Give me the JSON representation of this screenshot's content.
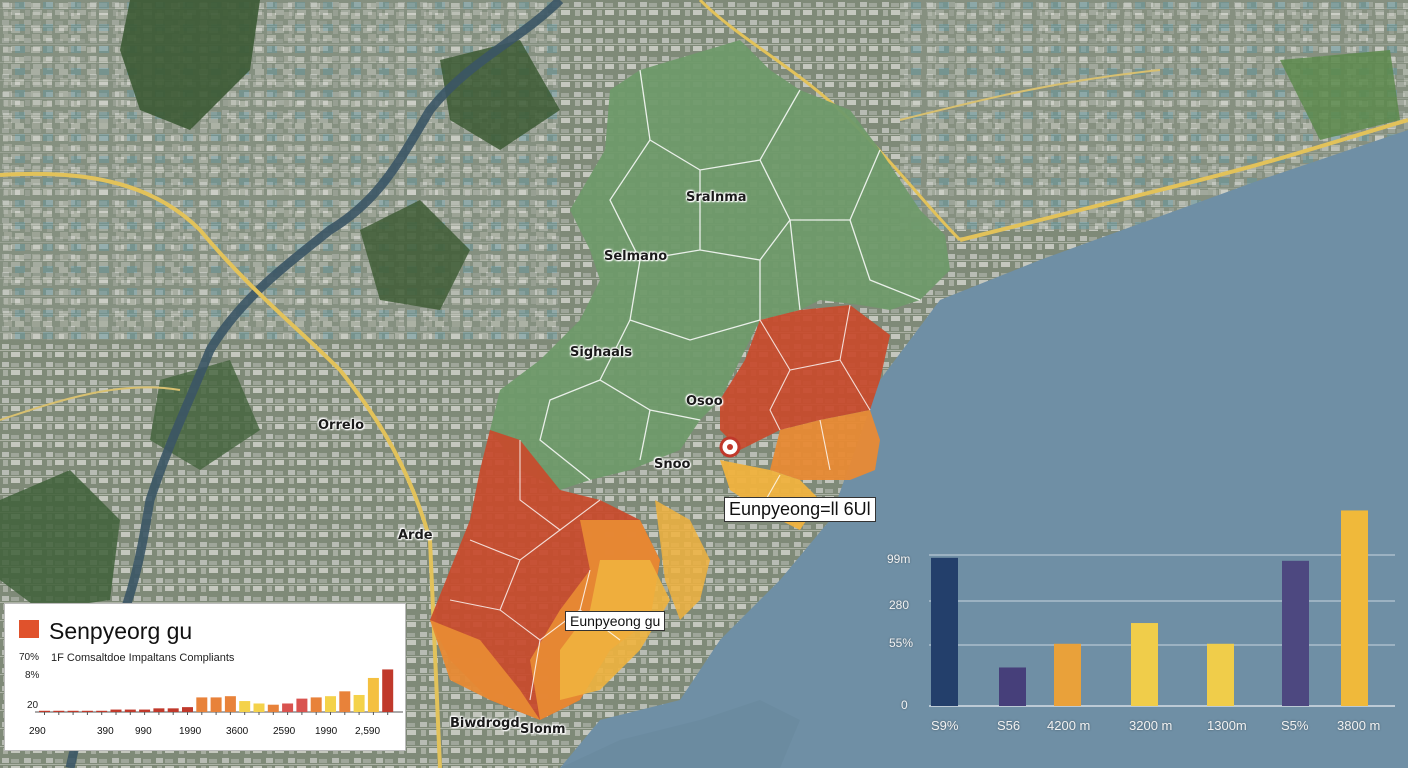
{
  "map_labels": [
    {
      "text": "Sralnma"
    },
    {
      "text": "Selmano"
    },
    {
      "text": "Sighaals"
    },
    {
      "text": "Osoo"
    },
    {
      "text": "Snoo"
    },
    {
      "text": "Orrelo"
    },
    {
      "text": "Arde"
    },
    {
      "text": "Biwdrogd"
    },
    {
      "text": "Slonm"
    }
  ],
  "map_tags": {
    "main": "Eunpyeong=ll 6Ul",
    "secondary": "Eunpyeong gu"
  },
  "colors": {
    "green_zone": "#6f9a6a",
    "red_zone": "#c84a2c",
    "orange_zone": "#e88a34",
    "yellow_zone": "#f0b23e",
    "water": "#6f8fa5"
  },
  "left_panel": {
    "title": "Senpyeorg gu",
    "subtitle": "1F Comsaltdoe Impaltans Compliants",
    "y_labels": [
      "70%",
      "8%",
      "20"
    ],
    "x_labels": [
      "290",
      "390",
      "990",
      "1990",
      "3600",
      "2590",
      "1990",
      "2,590"
    ]
  },
  "right_panel": {
    "y_labels": [
      "99m",
      "280",
      "55%",
      "0"
    ],
    "x_labels": [
      "S9%",
      "S56",
      "4200 m",
      "3200 m",
      "1300m",
      "S5%",
      "3800 m"
    ]
  },
  "chart_data": [
    {
      "type": "bar",
      "title": "Senpyeorg gu",
      "subtitle": "1F Comsaltdoe Impaltans Compliants",
      "values": [
        1,
        1,
        1,
        1,
        1,
        2,
        2,
        2,
        3,
        3,
        4,
        12,
        12,
        13,
        9,
        7,
        6,
        7,
        11,
        12,
        13,
        17,
        14,
        28,
        35
      ],
      "colors": [
        "#c0392b",
        "#c0392b",
        "#c0392b",
        "#c0392b",
        "#c0392b",
        "#c0392b",
        "#c0392b",
        "#c0392b",
        "#c0392b",
        "#c0392b",
        "#c0392b",
        "#e8823a",
        "#e8823a",
        "#e8823a",
        "#f4d24a",
        "#f4d24a",
        "#e8823a",
        "#d9534f",
        "#d9534f",
        "#e8823a",
        "#f4d24a",
        "#e8823a",
        "#f4d24a",
        "#f4c040",
        "#c0392b"
      ],
      "x_tick_labels": [
        "290",
        "390",
        "990",
        "1990",
        "3600",
        "2590",
        "1990",
        "2,590"
      ],
      "y_tick_labels": [
        "70%",
        "8%",
        "20"
      ],
      "legend": [
        {
          "name": "Senpyeorg gu",
          "color": "#e0522c"
        }
      ],
      "ylim": [
        0,
        37
      ]
    },
    {
      "type": "bar",
      "values": [
        100,
        26,
        42,
        56,
        42,
        98,
        132
      ],
      "colors": [
        "#233f6b",
        "#463f7a",
        "#e9a13a",
        "#f0cd4a",
        "#f0cd4a",
        "#4d4880",
        "#f0b93a"
      ],
      "x_tick_labels": [
        "S9%",
        "S56",
        "4200 m",
        "3200 m",
        "1300m",
        "S5%",
        "3800 m"
      ],
      "y_tick_labels": [
        "99m",
        "280",
        "55%",
        "0"
      ],
      "ylim": [
        0,
        135
      ]
    }
  ]
}
